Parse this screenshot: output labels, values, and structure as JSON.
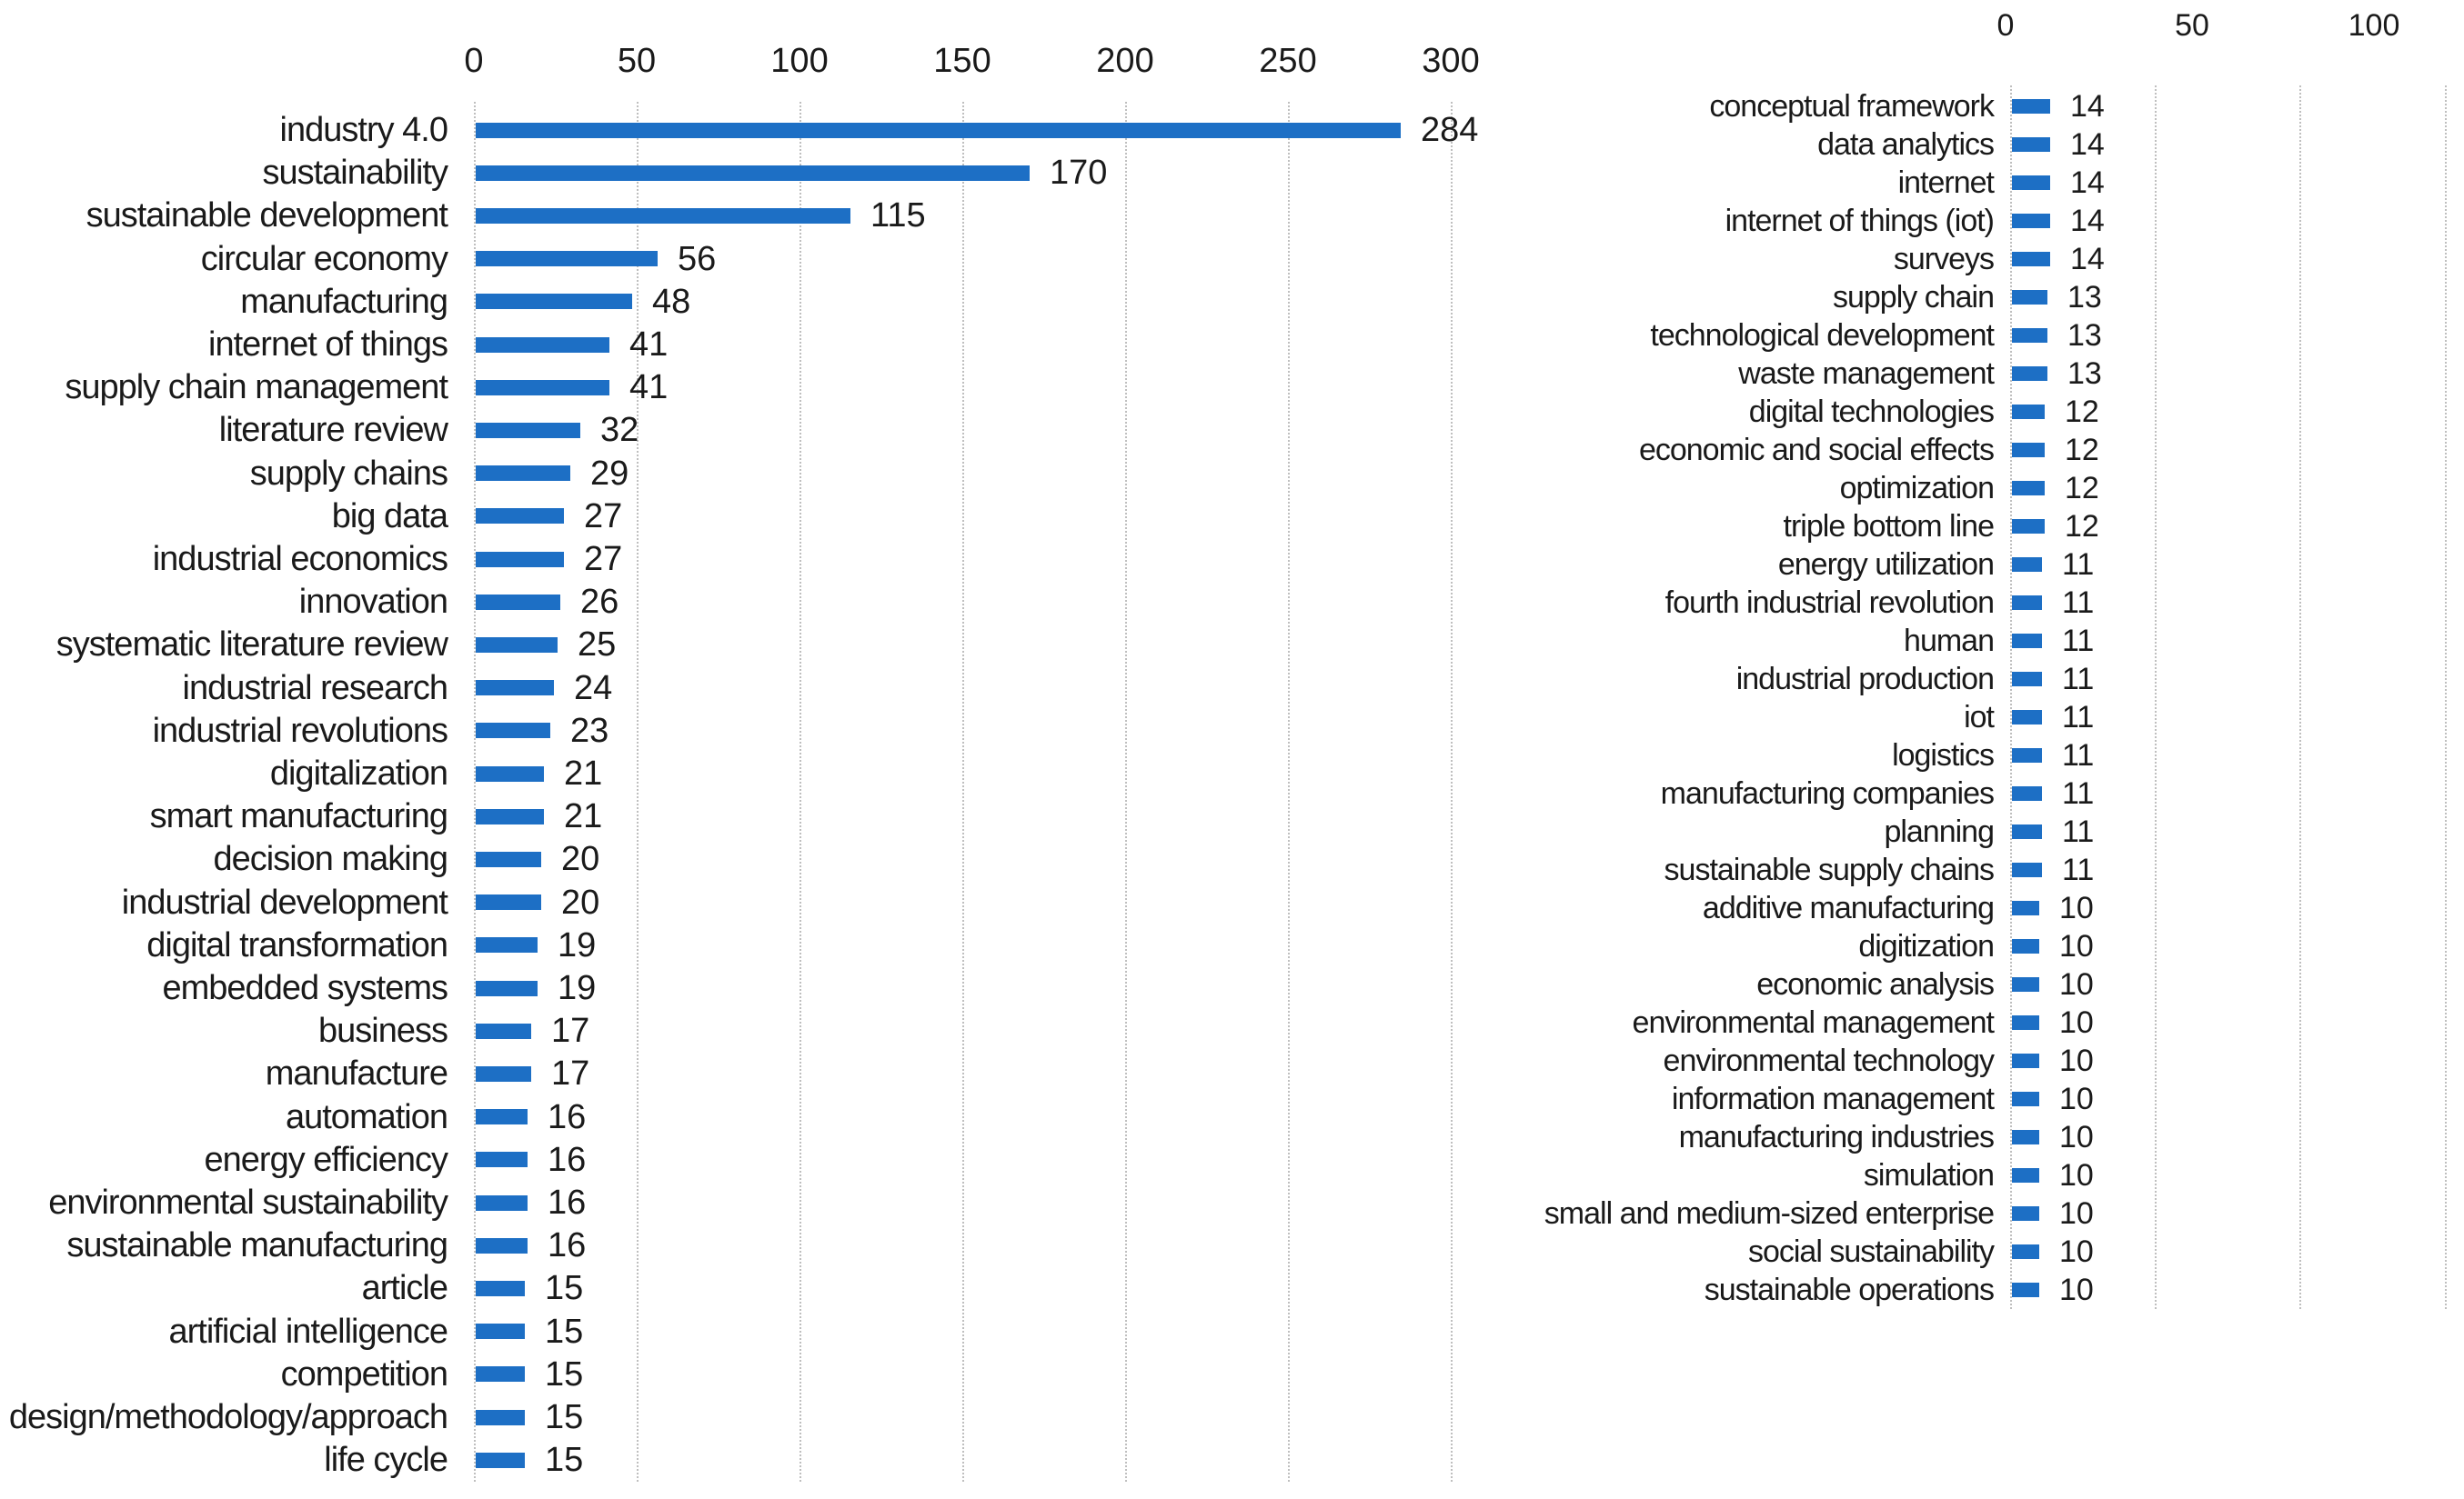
{
  "colors": {
    "bar": "#1d6fc5",
    "gridline": "#bfbfbf",
    "text": "#1a1a1a",
    "background": "#ffffff"
  },
  "chart_data": [
    {
      "id": "left-panel",
      "type": "bar",
      "orientation": "horizontal",
      "title": "",
      "xlabel": "",
      "ylabel": "",
      "x_tick_labels": [
        "0",
        "50",
        "100",
        "150",
        "200",
        "250",
        "300"
      ],
      "x_gridlines": [
        0,
        50,
        100,
        150,
        200,
        250,
        300
      ],
      "xlim": [
        0,
        300
      ],
      "grid": "vertical-dotted",
      "legend": false,
      "value_labels": "end-of-bar",
      "bar_color": "#1d6fc5",
      "categories": [
        "industry 4.0",
        "sustainability",
        "sustainable development",
        "circular economy",
        "manufacturing",
        "internet of things",
        "supply chain management",
        "literature review",
        "supply chains",
        "big data",
        "industrial economics",
        "innovation",
        "systematic literature review",
        "industrial research",
        "industrial revolutions",
        "digitalization",
        "smart manufacturing",
        "decision making",
        "industrial development",
        "digital transformation",
        "embedded systems",
        "business",
        "manufacture",
        "automation",
        "energy efficiency",
        "environmental sustainability",
        "sustainable manufacturing",
        "article",
        "artificial intelligence",
        "competition",
        "design/methodology/approach",
        "life cycle"
      ],
      "values": [
        284,
        170,
        115,
        56,
        48,
        41,
        41,
        32,
        29,
        27,
        27,
        26,
        25,
        24,
        23,
        21,
        21,
        20,
        20,
        19,
        19,
        17,
        17,
        16,
        16,
        16,
        16,
        15,
        15,
        15,
        15,
        15
      ]
    },
    {
      "id": "right-panel",
      "type": "bar",
      "orientation": "horizontal",
      "title": "",
      "xlabel": "",
      "ylabel": "",
      "x_tick_labels": [
        "0",
        "50",
        "100"
      ],
      "x_gridlines": [
        0,
        50,
        100,
        150
      ],
      "xlim": [
        0,
        165
      ],
      "grid": "vertical-dotted",
      "legend": false,
      "value_labels": "end-of-bar",
      "bar_color": "#1d6fc5",
      "categories": [
        "conceptual framework",
        "data analytics",
        "internet",
        "internet of things (iot)",
        "surveys",
        "supply chain",
        "technological development",
        "waste management",
        "digital technologies",
        "economic and social effects",
        "optimization",
        "triple bottom line",
        "energy utilization",
        "fourth industrial revolution",
        "human",
        "industrial production",
        "iot",
        "logistics",
        "manufacturing companies",
        "planning",
        "sustainable supply chains",
        "additive manufacturing",
        "digitization",
        "economic analysis",
        "environmental management",
        "environmental technology",
        "information management",
        "manufacturing industries",
        "simulation",
        "small and medium-sized enterprise",
        "social sustainability",
        "sustainable operations"
      ],
      "values": [
        14,
        14,
        14,
        14,
        14,
        13,
        13,
        13,
        12,
        12,
        12,
        12,
        11,
        11,
        11,
        11,
        11,
        11,
        11,
        11,
        11,
        10,
        10,
        10,
        10,
        10,
        10,
        10,
        10,
        10,
        10,
        10
      ]
    }
  ]
}
